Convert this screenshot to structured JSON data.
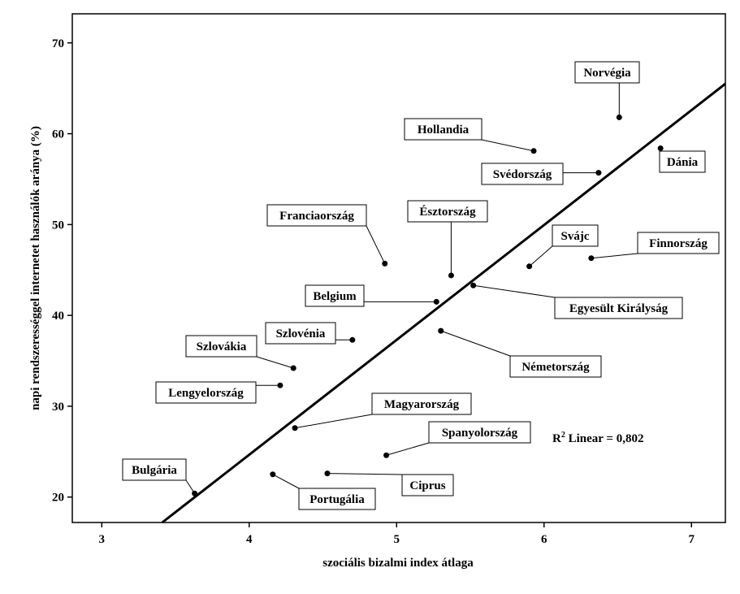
{
  "chart_data": {
    "type": "scatter",
    "xlabel": "szociális bizalmi index átlaga",
    "ylabel": "napi rendszerességgel internetet használók aránya (%)",
    "xlim": [
      2.8,
      7.23
    ],
    "ylim": [
      17.2,
      73.2
    ],
    "x_ticks": [
      3,
      4,
      5,
      6,
      7
    ],
    "y_ticks": [
      20,
      30,
      40,
      50,
      60,
      70
    ],
    "points": [
      {
        "label": "Norvégia",
        "x": 6.51,
        "y": 61.8
      },
      {
        "label": "Dánia",
        "x": 6.79,
        "y": 58.4
      },
      {
        "label": "Hollandia",
        "x": 5.93,
        "y": 58.1
      },
      {
        "label": "Svédország",
        "x": 6.37,
        "y": 55.7
      },
      {
        "label": "Franciaország",
        "x": 4.92,
        "y": 45.7
      },
      {
        "label": "Észtország",
        "x": 5.37,
        "y": 44.4
      },
      {
        "label": "Svájc",
        "x": 5.9,
        "y": 45.4
      },
      {
        "label": "Finnország",
        "x": 6.32,
        "y": 46.3
      },
      {
        "label": "Egyesült Királyság",
        "x": 5.52,
        "y": 43.3
      },
      {
        "label": "Belgium",
        "x": 5.27,
        "y": 41.5
      },
      {
        "label": "Szlovénia",
        "x": 4.7,
        "y": 37.3
      },
      {
        "label": "Németország",
        "x": 5.3,
        "y": 38.3
      },
      {
        "label": "Szlovákia",
        "x": 4.3,
        "y": 34.2
      },
      {
        "label": "Lengyelország",
        "x": 4.21,
        "y": 32.3
      },
      {
        "label": "Magyarország",
        "x": 4.31,
        "y": 27.6
      },
      {
        "label": "Spanyolország",
        "x": 4.93,
        "y": 24.6
      },
      {
        "label": "Bulgária",
        "x": 3.63,
        "y": 20.4
      },
      {
        "label": "Portugália",
        "x": 4.16,
        "y": 22.5
      },
      {
        "label": "Ciprus",
        "x": 4.53,
        "y": 22.6
      }
    ],
    "fit_line": {
      "type": "linear",
      "x": [
        3.41,
        7.23
      ],
      "y": [
        17.2,
        65.5
      ]
    },
    "annotation": {
      "r2_prefix": "R",
      "r2_sup": "2",
      "r2_text": " Linear = 0,802"
    }
  }
}
